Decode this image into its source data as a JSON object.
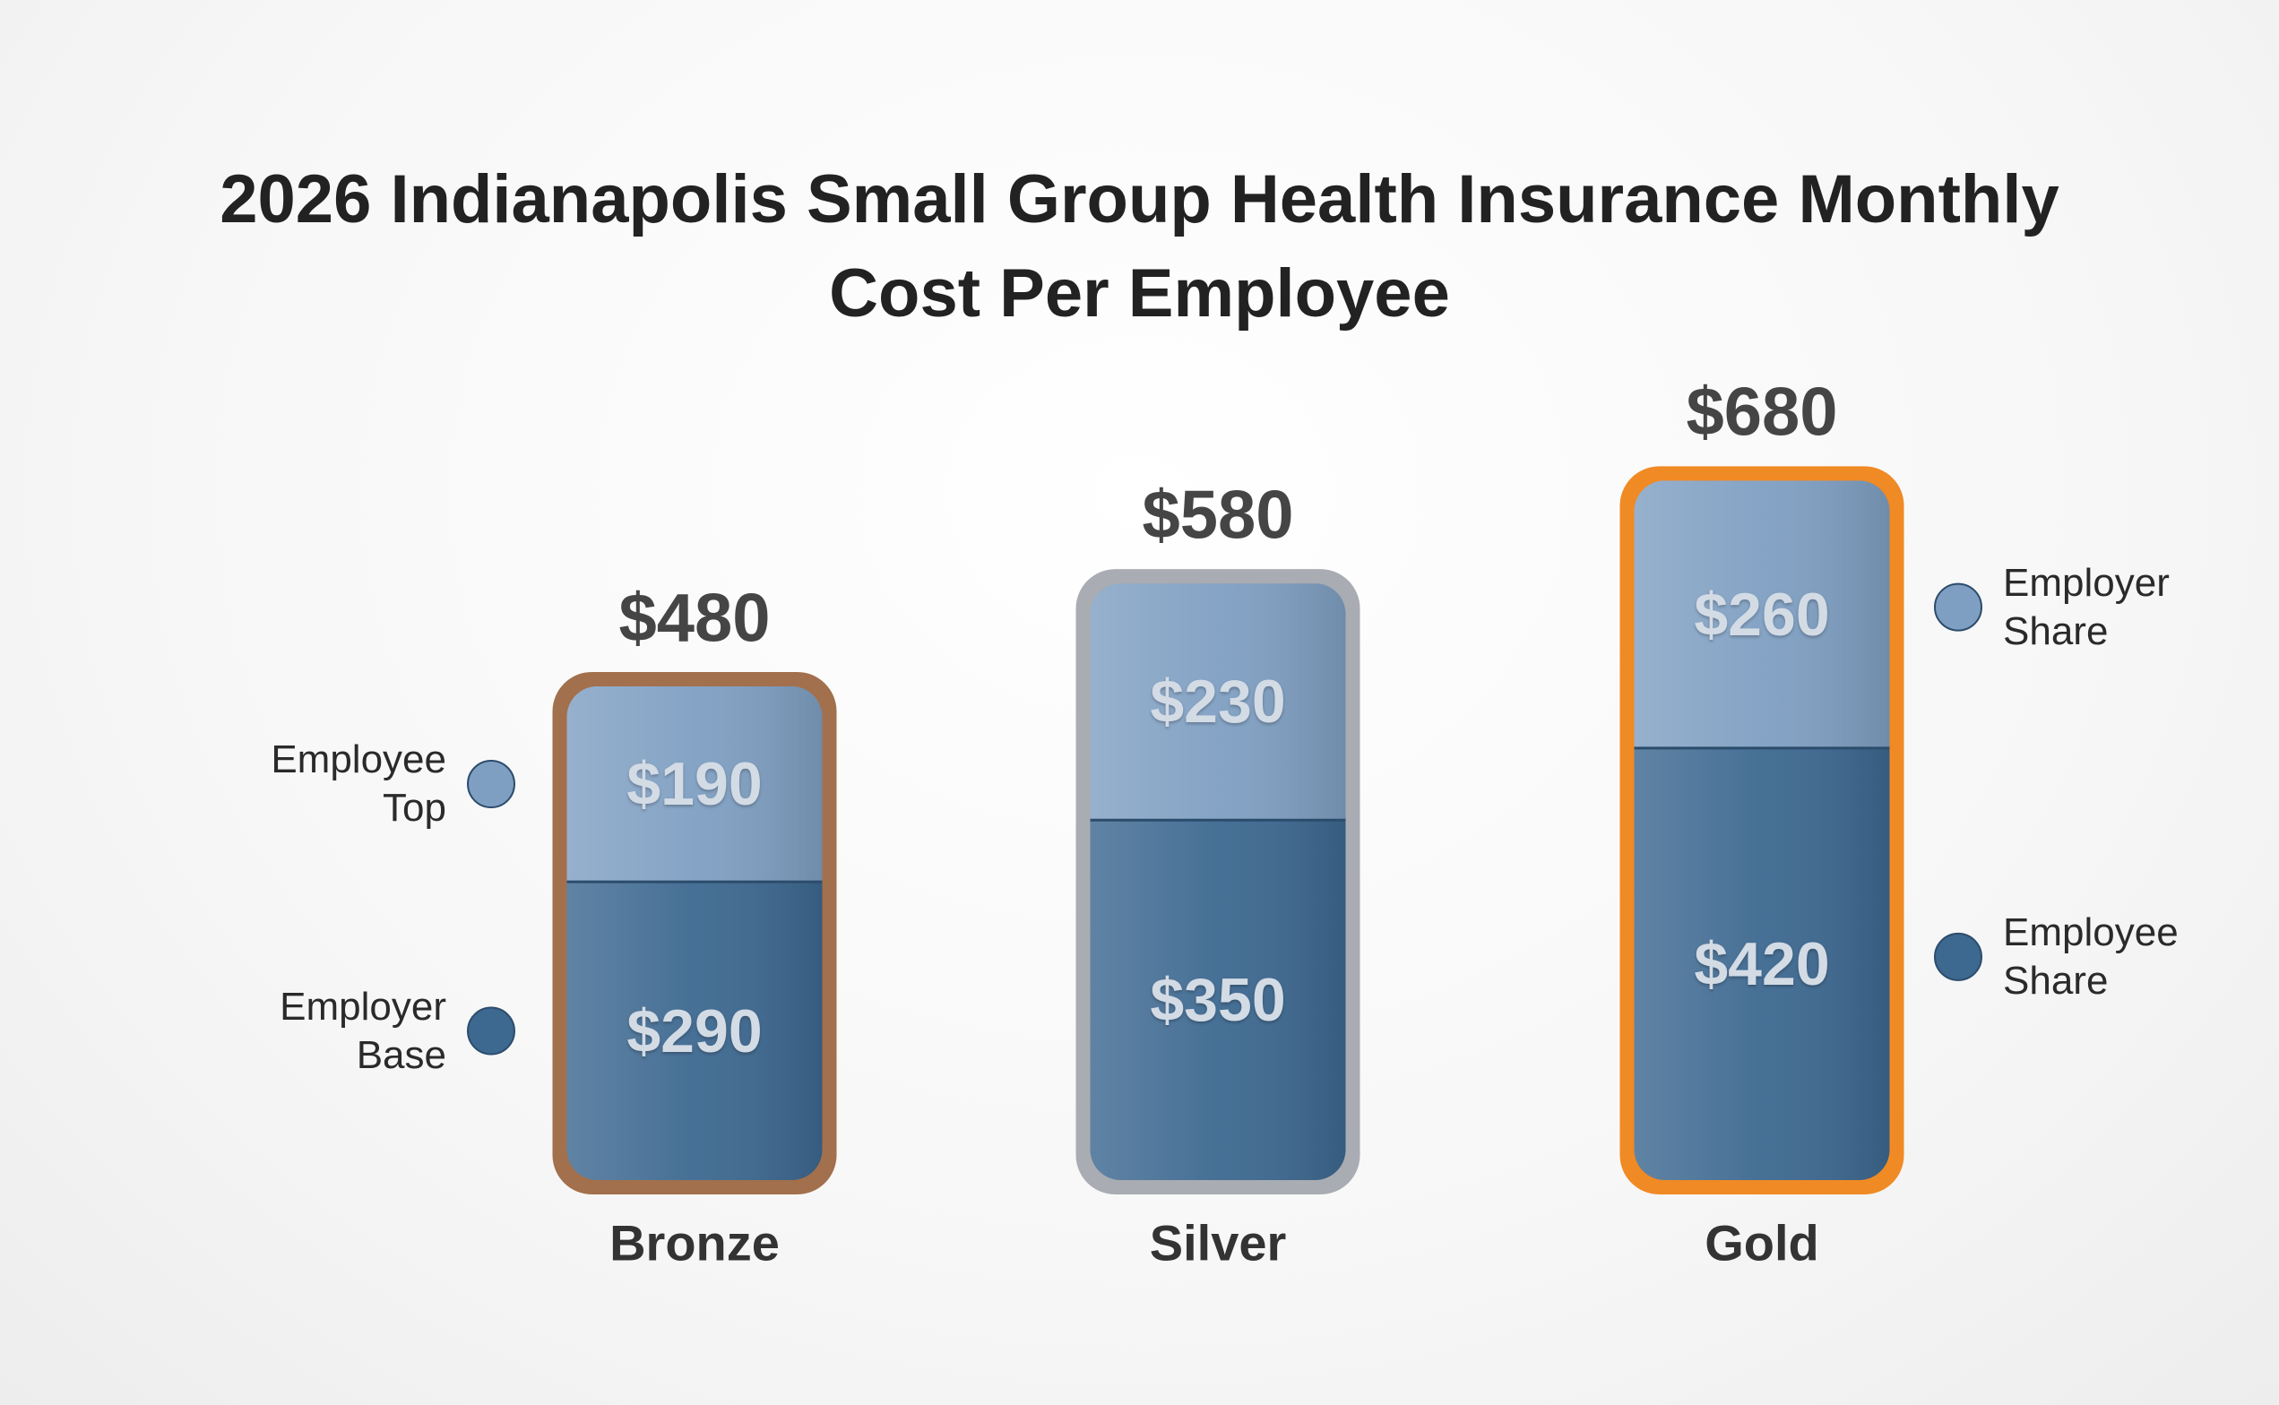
{
  "chart_data": {
    "type": "stacked_bar",
    "title": "2026 Indianapolis Small Group Health Insurance Monthly Cost Per Employee",
    "categories": [
      "Bronze",
      "Silver",
      "Gold"
    ],
    "series": [
      {
        "name": "Employer Base",
        "color": "#3d6890",
        "values": [
          290,
          350,
          420
        ],
        "value_labels": [
          "$290",
          "$350",
          "$420"
        ]
      },
      {
        "name": "Employee Top",
        "color": "#7f9fc2",
        "values": [
          190,
          230,
          260
        ],
        "value_labels": [
          "$190",
          "$230",
          "$260"
        ]
      }
    ],
    "totals": {
      "values": [
        480,
        580,
        680
      ],
      "value_labels": [
        "$480",
        "$580",
        "$680"
      ]
    },
    "frame_colors": [
      "#a2704c",
      "#a9acb2",
      "#f08a24"
    ],
    "annotations": [
      {
        "text": "Employer Share",
        "color": "#7f9fc2"
      },
      {
        "text": "Employee Share",
        "color": "#3d6890"
      }
    ]
  }
}
